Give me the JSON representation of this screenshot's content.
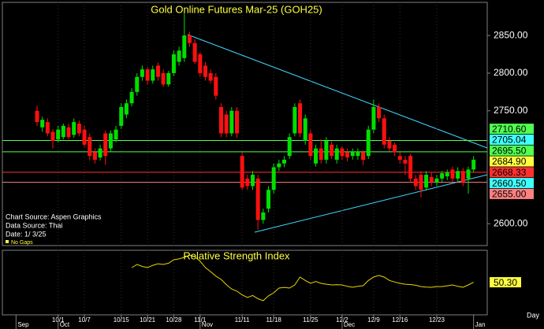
{
  "chart_data": {
    "type": "candlestick",
    "title": "Gold Online Futures Mar-25 (GOH25)",
    "up_color": "#00e000",
    "down_color": "#ff1010",
    "ohlc": [
      [
        2750,
        2757,
        2730,
        2735
      ],
      [
        2728,
        2742,
        2722,
        2738
      ],
      [
        2735,
        2740,
        2716,
        2720
      ],
      [
        2722,
        2726,
        2700,
        2710
      ],
      [
        2712,
        2730,
        2708,
        2725
      ],
      [
        2715,
        2733,
        2712,
        2730
      ],
      [
        2728,
        2733,
        2712,
        2715
      ],
      [
        2718,
        2740,
        2714,
        2735
      ],
      [
        2733,
        2737,
        2716,
        2720
      ],
      [
        2725,
        2730,
        2702,
        2705
      ],
      [
        2715,
        2720,
        2684,
        2690
      ],
      [
        2695,
        2700,
        2680,
        2685
      ],
      [
        2688,
        2705,
        2684,
        2700
      ],
      [
        2720,
        2724,
        2678,
        2690
      ],
      [
        2700,
        2724,
        2696,
        2720
      ],
      [
        2712,
        2730,
        2708,
        2725
      ],
      [
        2730,
        2760,
        2726,
        2755
      ],
      [
        2745,
        2765,
        2740,
        2760
      ],
      [
        2760,
        2780,
        2756,
        2775
      ],
      [
        2775,
        2800,
        2770,
        2795
      ],
      [
        2795,
        2810,
        2790,
        2805
      ],
      [
        2805,
        2808,
        2785,
        2790
      ],
      [
        2790,
        2810,
        2786,
        2805
      ],
      [
        2810,
        2814,
        2790,
        2795
      ],
      [
        2800,
        2805,
        2782,
        2785
      ],
      [
        2785,
        2803,
        2782,
        2800
      ],
      [
        2800,
        2830,
        2796,
        2825
      ],
      [
        2815,
        2835,
        2810,
        2830
      ],
      [
        2820,
        2880,
        2815,
        2850
      ],
      [
        2850,
        2855,
        2835,
        2840
      ],
      [
        2840,
        2845,
        2812,
        2815
      ],
      [
        2825,
        2828,
        2795,
        2800
      ],
      [
        2810,
        2815,
        2790,
        2795
      ],
      [
        2800,
        2805,
        2786,
        2790
      ],
      [
        2795,
        2800,
        2765,
        2770
      ],
      [
        2755,
        2760,
        2715,
        2720
      ],
      [
        2745,
        2750,
        2715,
        2720
      ],
      [
        2720,
        2755,
        2716,
        2750
      ],
      [
        2750,
        2755,
        2714,
        2720
      ],
      [
        2690,
        2695,
        2645,
        2648
      ],
      [
        2660,
        2665,
        2645,
        2650
      ],
      [
        2650,
        2670,
        2645,
        2665
      ],
      [
        2660,
        2665,
        2592,
        2605
      ],
      [
        2605,
        2620,
        2600,
        2615
      ],
      [
        2620,
        2650,
        2615,
        2645
      ],
      [
        2645,
        2680,
        2640,
        2675
      ],
      [
        2675,
        2685,
        2670,
        2680
      ],
      [
        2680,
        2690,
        2675,
        2685
      ],
      [
        2690,
        2720,
        2686,
        2715
      ],
      [
        2720,
        2760,
        2716,
        2755
      ],
      [
        2760,
        2765,
        2715,
        2720
      ],
      [
        2710,
        2745,
        2705,
        2740
      ],
      [
        2720,
        2725,
        2685,
        2690
      ],
      [
        2680,
        2705,
        2676,
        2700
      ],
      [
        2700,
        2712,
        2680,
        2685
      ],
      [
        2685,
        2715,
        2680,
        2710
      ],
      [
        2705,
        2710,
        2686,
        2690
      ],
      [
        2685,
        2705,
        2680,
        2700
      ],
      [
        2700,
        2703,
        2685,
        2690
      ],
      [
        2695,
        2700,
        2683,
        2688
      ],
      [
        2690,
        2700,
        2685,
        2695
      ],
      [
        2690,
        2700,
        2685,
        2695
      ],
      [
        2695,
        2698,
        2678,
        2685
      ],
      [
        2690,
        2730,
        2686,
        2725
      ],
      [
        2725,
        2765,
        2720,
        2755
      ],
      [
        2755,
        2760,
        2735,
        2740
      ],
      [
        2740,
        2745,
        2700,
        2705
      ],
      [
        2710,
        2715,
        2696,
        2700
      ],
      [
        2705,
        2708,
        2690,
        2695
      ],
      [
        2690,
        2695,
        2680,
        2685
      ],
      [
        2685,
        2690,
        2665,
        2680
      ],
      [
        2690,
        2693,
        2655,
        2660
      ],
      [
        2660,
        2665,
        2645,
        2650
      ],
      [
        2665,
        2670,
        2635,
        2645
      ],
      [
        2648,
        2670,
        2644,
        2665
      ],
      [
        2662,
        2668,
        2650,
        2655
      ],
      [
        2655,
        2665,
        2650,
        2660
      ],
      [
        2660,
        2670,
        2655,
        2667
      ],
      [
        2663,
        2672,
        2658,
        2668
      ],
      [
        2672,
        2676,
        2655,
        2660
      ],
      [
        2660,
        2675,
        2656,
        2670
      ],
      [
        2670,
        2674,
        2650,
        2655
      ],
      [
        2660,
        2676,
        2640,
        2672
      ],
      [
        2672,
        2690,
        2668,
        2685
      ]
    ],
    "xlim": [
      -6.6,
      85.6
    ],
    "ylim": [
      2571,
      2894
    ],
    "yticks": [
      {
        "value": 2600,
        "label": "2600.00"
      },
      {
        "value": 2750,
        "label": "2750.00"
      },
      {
        "value": 2800,
        "label": "2800.00"
      },
      {
        "value": 2850,
        "label": "2850.00"
      }
    ],
    "xticks": [
      {
        "value": 4,
        "label": "10/1"
      },
      {
        "value": 9,
        "label": "10/7"
      },
      {
        "value": 16,
        "label": "10/15"
      },
      {
        "value": 21,
        "label": "10/21"
      },
      {
        "value": 26,
        "label": "10/28"
      },
      {
        "value": 31,
        "label": "11/1"
      },
      {
        "value": 39,
        "label": "11/11"
      },
      {
        "value": 45,
        "label": "11/18"
      },
      {
        "value": 52,
        "label": "11/25"
      },
      {
        "value": 58,
        "label": "12/2"
      },
      {
        "value": 64,
        "label": "12/9"
      },
      {
        "value": 69,
        "label": "12/16"
      },
      {
        "value": 76,
        "label": "12/23"
      }
    ],
    "month_ticks": [
      {
        "value": -4,
        "label": "Sep"
      },
      {
        "value": 4,
        "label": "Oct"
      },
      {
        "value": 31,
        "label": "Nov"
      },
      {
        "value": 58,
        "label": "Dec"
      },
      {
        "value": 83,
        "label": "Jan"
      }
    ],
    "grid": true,
    "levels": [
      {
        "value": 2710.6,
        "label": "2710.60",
        "color": "#50ff50",
        "line": true
      },
      {
        "value": 2705.04,
        "color": "#40ffff",
        "line": false
      },
      {
        "value": 2695.5,
        "label": "2695.50",
        "color": "#50ff50",
        "line": true
      },
      {
        "value": 2684.9,
        "label": "2684.90",
        "color": "#ffff40",
        "line": false
      },
      {
        "value": 2668.33,
        "color": "#ff3030",
        "line": true
      },
      {
        "value": 2660.5,
        "label": "2660.50",
        "color": "#40ffff",
        "line": false
      },
      {
        "value": 2655,
        "label": "2655.00",
        "color": "#ff8080",
        "line": true
      }
    ],
    "notes": [
      "Chart Source: Aspen Graphics",
      "Data Source: Thai",
      "Date:  1/ 3/25",
      "No Gaps"
    ],
    "period": "Day",
    "indicator": {
      "name": "Relative Strength Index",
      "color": "#e8d800",
      "ylim": [
        20,
        80
      ],
      "last_label": "50.30",
      "values": [
        null,
        null,
        null,
        null,
        null,
        null,
        null,
        null,
        null,
        null,
        null,
        null,
        null,
        null,
        null,
        null,
        null,
        null,
        63.9,
        66.8,
        65,
        63.9,
        66,
        67.5,
        66.8,
        68,
        71.2,
        72,
        73.5,
        75.6,
        74,
        69.8,
        64,
        60.2,
        56,
        52.9,
        48,
        44,
        42,
        38.5,
        36.1,
        38,
        35,
        33.2,
        37.6,
        40.5,
        44.9,
        45.5,
        44.9,
        47.8,
        55.1,
        52,
        49.3,
        51,
        49.3,
        48.5,
        47.8,
        48,
        47.8,
        46.5,
        45.6,
        46.5,
        47.1,
        52,
        55.1,
        56.6,
        55.1,
        52,
        50.5,
        49.3,
        48.5,
        48.2,
        47.5,
        46.3,
        45.8,
        45.6,
        46.3,
        46.3,
        47,
        47.8,
        46.5,
        45.6,
        47.8,
        50.3
      ]
    }
  }
}
